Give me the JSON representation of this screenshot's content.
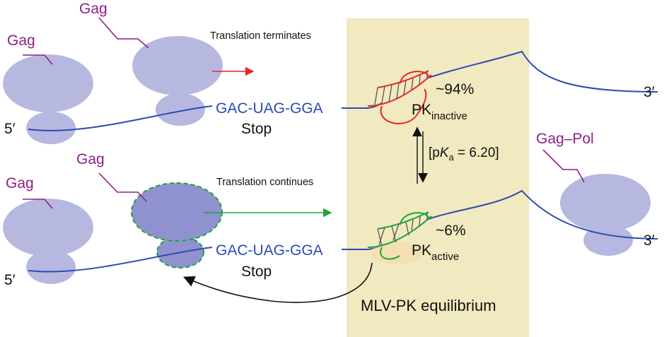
{
  "top": {
    "ribosome_labels": [
      "Gag",
      "Gag"
    ],
    "status": "Translation terminates",
    "sequence": "GAC-UAG-GGA",
    "stop_label": "Stop",
    "five_prime": "5′",
    "three_prime": "3′",
    "percent": "~94%",
    "pk_main": "PK",
    "pk_sub": "inactive"
  },
  "bottom": {
    "ribosome_labels": [
      "Gag",
      "Gag"
    ],
    "status": "Translation continues",
    "sequence": "GAC-UAG-GGA",
    "stop_label": "Stop",
    "five_prime": "5′",
    "three_prime": "3′",
    "percent": "~6%",
    "pk_main": "PK",
    "pk_sub": "active",
    "product_label": "Gag–Pol"
  },
  "equilibrium": {
    "pka_prefix": "[p",
    "pka_k": "K",
    "pka_sub": "a",
    "pka_value": " = 6.20]",
    "panel_label": "MLV-PK equilibrium"
  },
  "colors": {
    "panel": "#f1e9bf",
    "ribosome": "#b6b8e0",
    "ribosome_active": "#8f92cf",
    "mrna": "#2b4bb0",
    "label": "#8e1f86",
    "inactive": "#e8262a",
    "active": "#1aa53a"
  }
}
